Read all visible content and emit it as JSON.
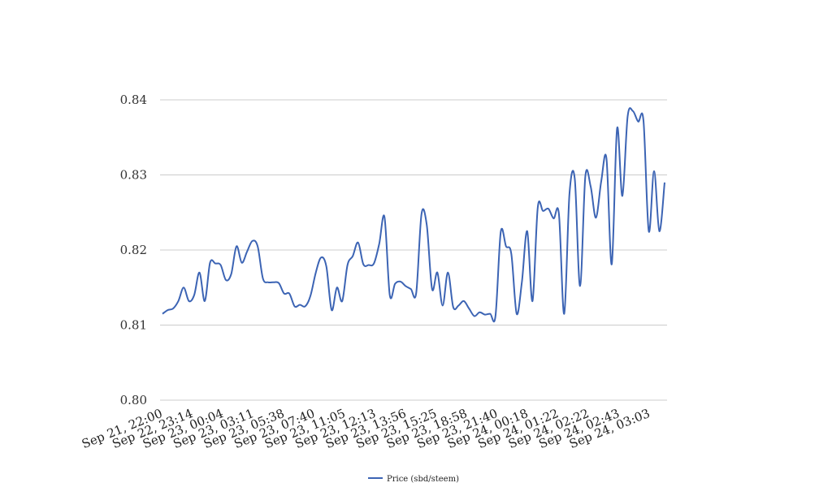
{
  "chart_data": {
    "type": "line",
    "title": "",
    "xlabel": "",
    "ylabel": "",
    "ylim": [
      0.8,
      0.84
    ],
    "yticks": [
      0.8,
      0.81,
      0.82,
      0.83,
      0.84
    ],
    "ytick_labels": [
      "0.80",
      "0.81",
      "0.82",
      "0.83",
      "0.84"
    ],
    "xtick_labels": [
      "Sep 21, 22:00",
      "Sep 22, 23:14",
      "Sep 23, 00:04",
      "Sep 23, 03:11",
      "Sep 23, 05:38",
      "Sep 23, 07:40",
      "Sep 23, 11:05",
      "Sep 23, 12:13",
      "Sep 23, 13:56",
      "Sep 23, 15:25",
      "Sep 23, 18:58",
      "Sep 23, 21:40",
      "Sep 24, 00:18",
      "Sep 24, 01:22",
      "Sep 24, 02:22",
      "Sep 24, 02:43",
      "Sep 24, 03:03"
    ],
    "grid": true,
    "legend": "bottom",
    "series": [
      {
        "name": "Price (sbd/steem)",
        "color": "#3c64b4",
        "values": [
          0.8115,
          0.812,
          0.8122,
          0.8132,
          0.815,
          0.8132,
          0.814,
          0.817,
          0.8132,
          0.8183,
          0.8182,
          0.818,
          0.816,
          0.8168,
          0.8205,
          0.8183,
          0.8198,
          0.8212,
          0.8205,
          0.8162,
          0.8157,
          0.8157,
          0.8156,
          0.8142,
          0.8142,
          0.8125,
          0.8127,
          0.8125,
          0.8139,
          0.817,
          0.819,
          0.8178,
          0.812,
          0.815,
          0.8132,
          0.818,
          0.8192,
          0.821,
          0.8181,
          0.818,
          0.8182,
          0.8208,
          0.8244,
          0.814,
          0.8155,
          0.8158,
          0.8152,
          0.8148,
          0.8143,
          0.8248,
          0.8233,
          0.8148,
          0.817,
          0.8126,
          0.817,
          0.8124,
          0.8126,
          0.8132,
          0.8122,
          0.8112,
          0.8117,
          0.8114,
          0.8115,
          0.8112,
          0.8224,
          0.8205,
          0.8195,
          0.8115,
          0.8158,
          0.8225,
          0.8132,
          0.8257,
          0.8252,
          0.8255,
          0.8242,
          0.8248,
          0.8115,
          0.8275,
          0.8295,
          0.8152,
          0.8298,
          0.8285,
          0.8243,
          0.8291,
          0.8322,
          0.8181,
          0.8362,
          0.8272,
          0.8378,
          0.8385,
          0.8371,
          0.8372,
          0.8225,
          0.8305,
          0.8225,
          0.829
        ]
      }
    ]
  }
}
